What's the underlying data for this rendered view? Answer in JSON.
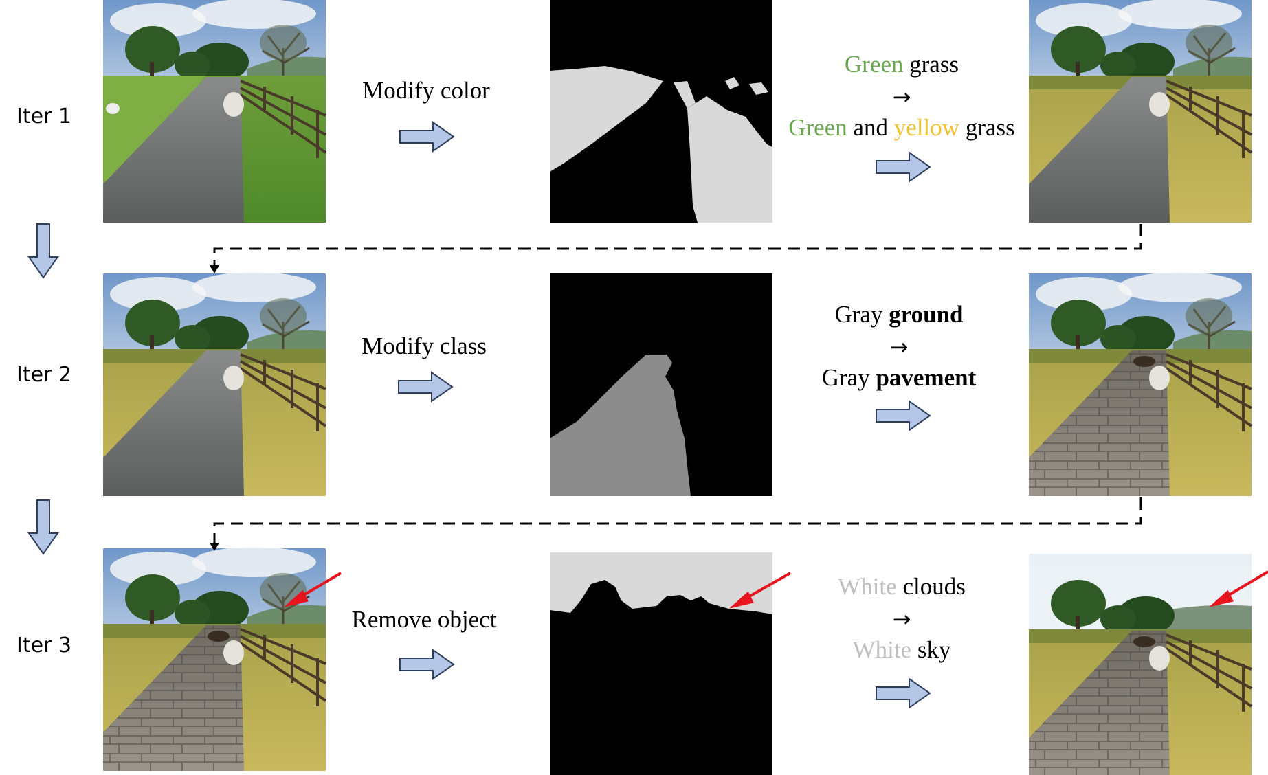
{
  "rows": [
    {
      "iter_label": "Iter 1",
      "operation": "Modify color",
      "phrase_from": [
        {
          "text": "Green",
          "color": "#6AA84F",
          "bold": false
        },
        {
          "text": " grass",
          "color": "#000000",
          "bold": false
        }
      ],
      "phrase_arrow": "→",
      "phrase_to": [
        {
          "text": "Green",
          "color": "#6AA84F",
          "bold": false
        },
        {
          "text": " and ",
          "color": "#000000",
          "bold": false
        },
        {
          "text": "yellow",
          "color": "#F1C232",
          "bold": false
        },
        {
          "text": " grass",
          "color": "#000000",
          "bold": false
        }
      ]
    },
    {
      "iter_label": "Iter 2",
      "operation": "Modify class",
      "phrase_from": [
        {
          "text": "Gray ",
          "color": "#000000",
          "bold": false
        },
        {
          "text": "ground",
          "color": "#000000",
          "bold": true
        }
      ],
      "phrase_arrow": "→",
      "phrase_to": [
        {
          "text": "Gray ",
          "color": "#000000",
          "bold": false
        },
        {
          "text": "pavement",
          "color": "#000000",
          "bold": true
        }
      ]
    },
    {
      "iter_label": "Iter 3",
      "operation": "Remove object",
      "phrase_from": [
        {
          "text": "White",
          "color": "#BFBFBF",
          "bold": false
        },
        {
          "text": " clouds",
          "color": "#000000",
          "bold": false
        }
      ],
      "phrase_arrow": "→",
      "phrase_to": [
        {
          "text": "White",
          "color": "#BFBFBF",
          "bold": false
        },
        {
          "text": " sky",
          "color": "#000000",
          "bold": false
        }
      ]
    }
  ],
  "colors": {
    "block_arrow_fill": "#B4C7E7",
    "block_arrow_stroke": "#2F3E5C",
    "mask_black": "#000000",
    "mask_light_gray": "#D9D9D9",
    "mask_mid_gray": "#8C8C8C",
    "highlight_arrow": "#E8141E"
  }
}
